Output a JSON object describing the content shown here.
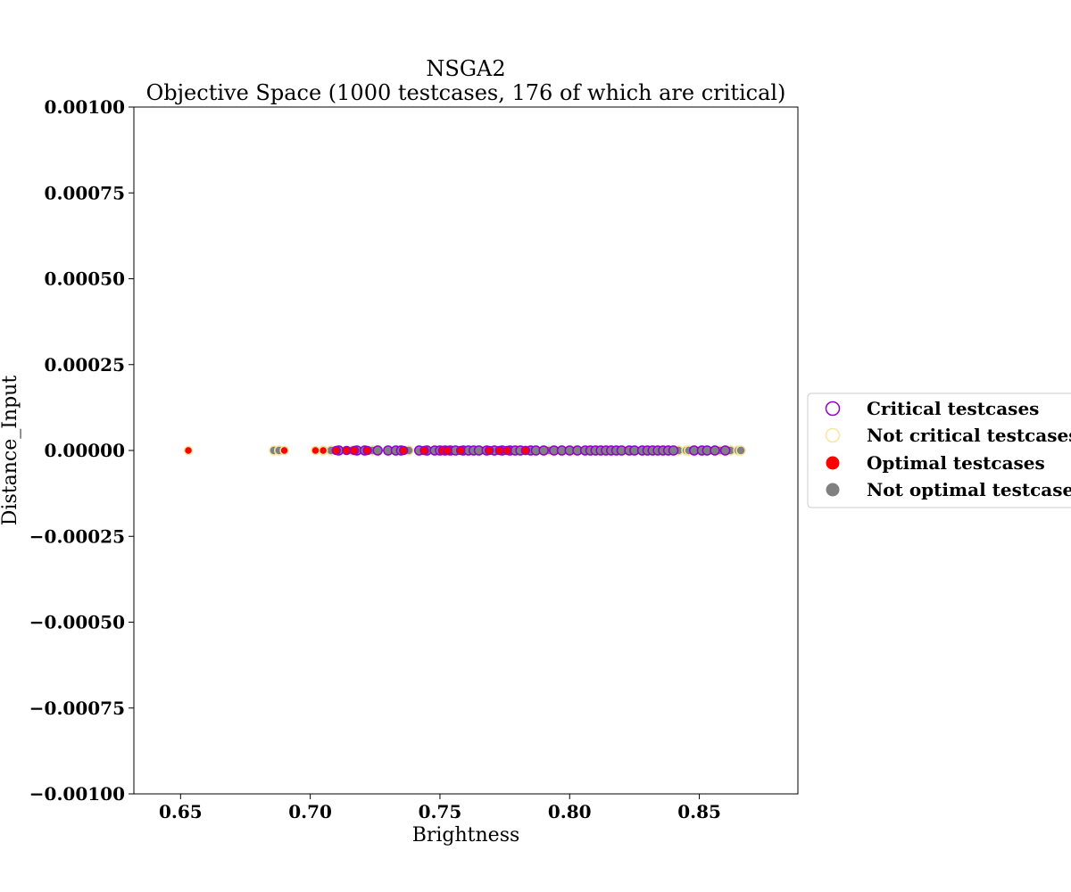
{
  "chart_data": {
    "type": "scatter",
    "title": "NSGA2",
    "subtitle": "Objective Space (1000 testcases, 176 of which are critical)",
    "xlabel": "Brightness",
    "ylabel": "Distance_Input",
    "xlim": [
      0.632,
      0.888
    ],
    "ylim": [
      -0.001,
      0.001
    ],
    "x_ticks": [
      "0.65",
      "0.70",
      "0.75",
      "0.80",
      "0.85"
    ],
    "x_tick_values": [
      0.65,
      0.7,
      0.75,
      0.8,
      0.85
    ],
    "y_ticks": [
      "0.00100",
      "0.00075",
      "0.00050",
      "0.00025",
      "0.00000",
      "−0.00025",
      "−0.00050",
      "−0.00075",
      "−0.00100"
    ],
    "y_tick_values": [
      0.001,
      0.00075,
      0.0005,
      0.00025,
      0.0,
      -0.00025,
      -0.0005,
      -0.00075,
      -0.001
    ],
    "grid": false,
    "legend_placement": "center-right",
    "legend": [
      {
        "label": "Critical testcases",
        "kind": "critical"
      },
      {
        "label": "Not critical testcases",
        "kind": "not-critical"
      },
      {
        "label": "Optimal testcases",
        "kind": "optimal"
      },
      {
        "label": "Not optimal testcases",
        "kind": "not-optimal"
      }
    ],
    "colors": {
      "critical": "#9400d3",
      "not_critical": "#f5e6a0",
      "optimal": "#ff0000",
      "not_optimal": "#808080"
    },
    "series": [
      {
        "name": "Not optimal testcases",
        "y": 0.0,
        "critical_x": [
          0.711,
          0.718,
          0.721,
          0.726,
          0.73,
          0.733,
          0.735,
          0.742,
          0.745,
          0.748,
          0.75,
          0.752,
          0.754,
          0.756,
          0.759,
          0.761,
          0.763,
          0.765,
          0.768,
          0.771,
          0.774,
          0.777,
          0.779,
          0.781,
          0.785,
          0.787,
          0.79,
          0.794,
          0.797,
          0.8,
          0.803,
          0.806,
          0.808,
          0.81,
          0.812,
          0.814,
          0.816,
          0.818,
          0.82,
          0.823,
          0.825,
          0.828,
          0.83,
          0.832,
          0.834,
          0.836,
          0.838,
          0.84,
          0.848,
          0.851,
          0.853,
          0.856,
          0.86
        ],
        "not_critical_x": [
          0.686,
          0.688,
          0.705,
          0.708,
          0.716,
          0.724,
          0.738,
          0.744,
          0.766,
          0.783,
          0.792,
          0.802,
          0.821,
          0.842,
          0.845,
          0.846,
          0.858,
          0.862,
          0.865,
          0.866
        ]
      },
      {
        "name": "Optimal testcases",
        "y": 0.0,
        "critical_x": [
          0.71,
          0.714,
          0.717,
          0.722,
          0.736,
          0.744,
          0.751,
          0.753,
          0.758,
          0.769,
          0.773,
          0.776,
          0.783
        ],
        "not_critical_x": [
          0.653,
          0.69,
          0.702,
          0.705
        ]
      }
    ]
  }
}
